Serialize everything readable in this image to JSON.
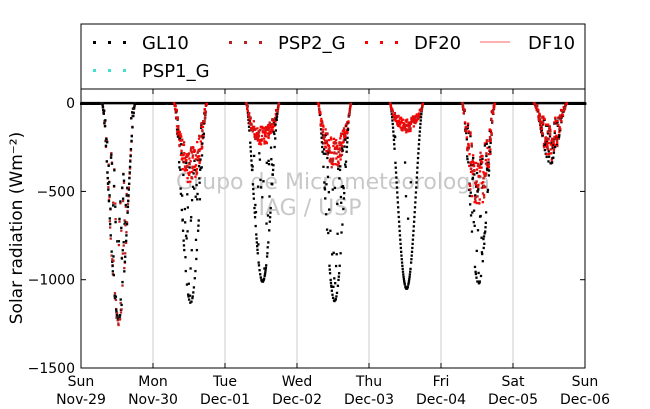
{
  "chart_data": {
    "type": "scatter",
    "title": "",
    "ylabel": "Solar radiation (Wm⁻²)",
    "xlabel": "",
    "ylim": [
      -1500,
      80
    ],
    "yticks": [
      0,
      -500,
      -1000,
      -1500
    ],
    "ytick_labels": [
      "0",
      "−500",
      "−1000",
      "−1500"
    ],
    "x_ticks": [
      {
        "day": 0,
        "line1": "Sun",
        "line2": "Nov-29"
      },
      {
        "day": 1,
        "line1": "Mon",
        "line2": "Nov-30"
      },
      {
        "day": 2,
        "line1": "Tue",
        "line2": "Dec-01"
      },
      {
        "day": 3,
        "line1": "Wed",
        "line2": "Dec-02"
      },
      {
        "day": 4,
        "line1": "Thu",
        "line2": "Dec-03"
      },
      {
        "day": 5,
        "line1": "Fri",
        "line2": "Dec-04"
      },
      {
        "day": 6,
        "line1": "Sat",
        "line2": "Dec-05"
      },
      {
        "day": 7,
        "line1": "Sun",
        "line2": "Dec-06"
      }
    ],
    "grid": "vertical",
    "legend_position": "top",
    "watermark": {
      "line1": "Grupo de Micrometeorologia",
      "line2": "IAG / USP"
    },
    "series": [
      {
        "name": "GL10",
        "color": "#000000",
        "marker": "dot"
      },
      {
        "name": "PSP2_G",
        "color": "#bb2020",
        "marker": "dot"
      },
      {
        "name": "DF20",
        "color": "#ff0000",
        "marker": "dot"
      },
      {
        "name": "DF10",
        "color": "#ff8080",
        "marker": "line"
      },
      {
        "name": "PSP1_G",
        "color": "#40e0d0",
        "marker": "dot"
      }
    ],
    "days": [
      {
        "day": 0,
        "ghi_peak": -1220,
        "diffuse_peak": -1200,
        "cloudiness": 0.55
      },
      {
        "day": 1,
        "ghi_peak": -1130,
        "diffuse_peak": -420,
        "cloudiness": 0.65
      },
      {
        "day": 2,
        "ghi_peak": -1010,
        "diffuse_peak": -220,
        "cloudiness": 0.4
      },
      {
        "day": 3,
        "ghi_peak": -1120,
        "diffuse_peak": -330,
        "cloudiness": 0.5
      },
      {
        "day": 4,
        "ghi_peak": -1050,
        "diffuse_peak": -150,
        "cloudiness": 0.1
      },
      {
        "day": 5,
        "ghi_peak": -1020,
        "diffuse_peak": -560,
        "cloudiness": 0.7
      },
      {
        "day": 6,
        "ghi_peak": -340,
        "diffuse_peak": -330,
        "cloudiness": 0.8
      }
    ]
  }
}
